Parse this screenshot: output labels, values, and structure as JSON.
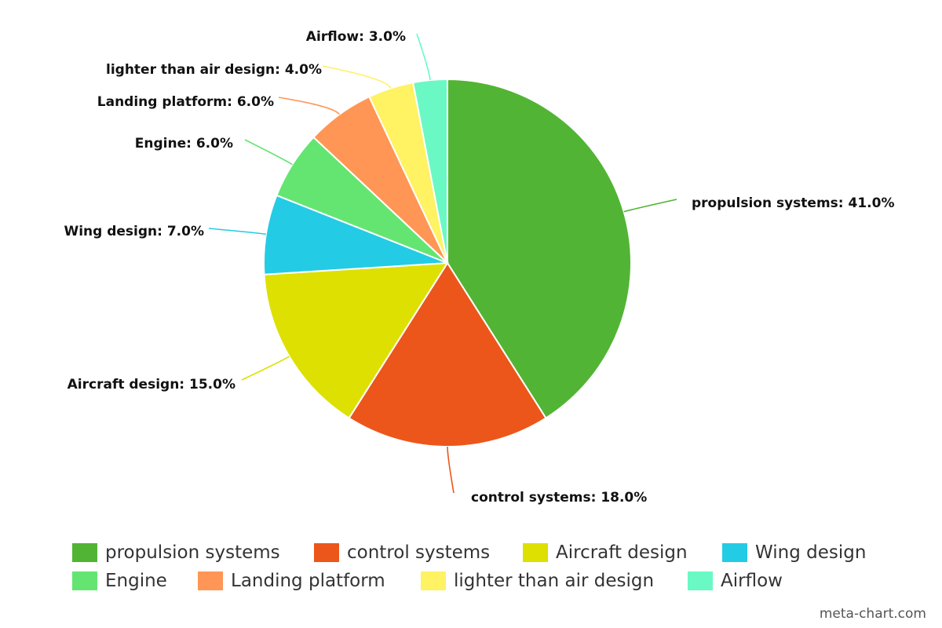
{
  "chart_data": {
    "type": "pie",
    "title": "",
    "start_angle_deg": 0,
    "direction": "clockwise",
    "slices": [
      {
        "label": "propulsion systems",
        "value": 41.0,
        "display": "propulsion systems: 41.0%",
        "color": "#52b434"
      },
      {
        "label": "control systems",
        "value": 18.0,
        "display": "control systems: 18.0%",
        "color": "#ec561b"
      },
      {
        "label": "Aircraft design",
        "value": 15.0,
        "display": "Aircraft design: 15.0%",
        "color": "#dde000"
      },
      {
        "label": "Wing design",
        "value": 7.0,
        "display": "Wing design: 7.0%",
        "color": "#24cbe5"
      },
      {
        "label": "Engine",
        "value": 6.0,
        "display": "Engine: 6.0%",
        "color": "#64e572"
      },
      {
        "label": "Landing platform",
        "value": 6.0,
        "display": "Landing platform: 6.0%",
        "color": "#ff9655"
      },
      {
        "label": "lighter than air design",
        "value": 4.0,
        "display": "lighter than air design: 4.0%",
        "color": "#fff263"
      },
      {
        "label": "Airflow",
        "value": 3.0,
        "display": "Airflow: 3.0%",
        "color": "#6af9c4"
      }
    ],
    "legend_position": "bottom"
  },
  "credit": "meta-chart.com"
}
